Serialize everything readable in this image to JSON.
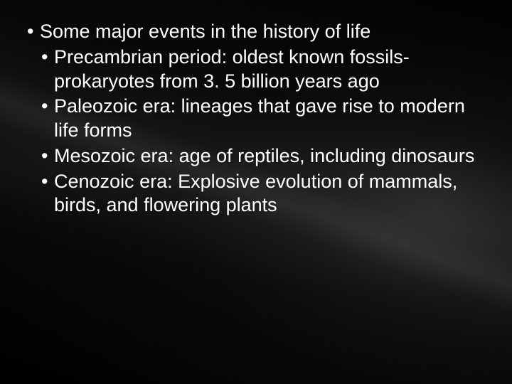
{
  "slide": {
    "background_color": "#000000",
    "text_color": "#ffffff",
    "font_family": "Arial",
    "font_size_pt": 20,
    "bullets": {
      "level1": {
        "text": "Some major events in the history of life"
      },
      "level2": [
        {
          "text": "Precambrian period: oldest known fossils- prokaryotes from 3. 5 billion years ago"
        },
        {
          "text": "Paleozoic era: lineages that gave rise to modern life forms"
        },
        {
          "text": "Mesozoic era: age of reptiles, including dinosaurs"
        },
        {
          "text": "Cenozoic era: Explosive evolution of mammals, birds, and flowering plants"
        }
      ]
    },
    "bullet_glyph": "•",
    "ray_overlay": {
      "origin": "right-center",
      "tint": "#8a8a8a",
      "opacity": 0.15
    }
  }
}
